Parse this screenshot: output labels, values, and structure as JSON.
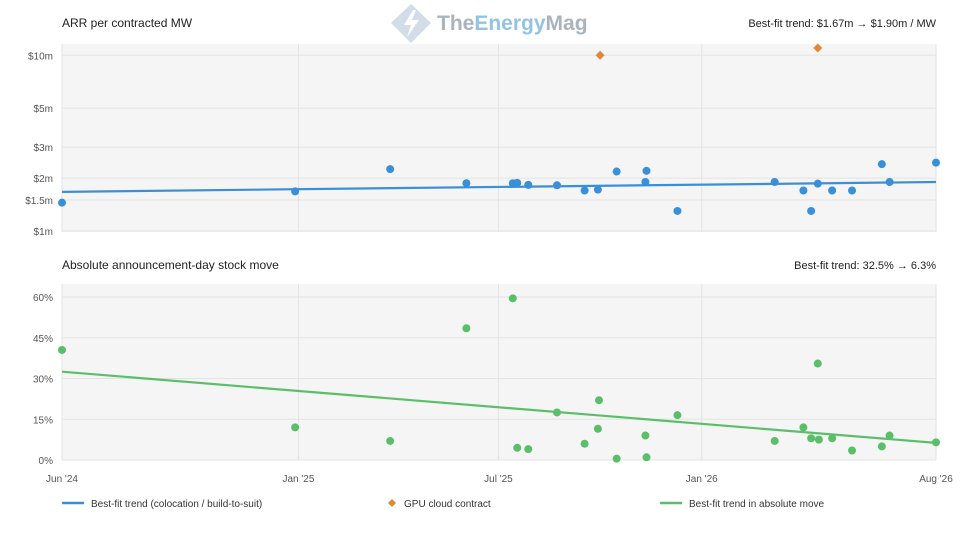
{
  "watermark": {
    "text_part1": "The",
    "text_part2": "Energy",
    "text_part3": "Mag"
  },
  "colors": {
    "blue": "#3a8fd9",
    "green": "#5bbf6a",
    "orange": "#e0883a",
    "panel": "#f5f5f5",
    "grid": "#e3e3e3"
  },
  "chart_data": [
    {
      "type": "scatter",
      "title": "ARR per contracted MW",
      "trend_text": "Best-fit trend: $1.67m → $1.90m / MW",
      "yscale": "log",
      "ylim": [
        1,
        11
      ],
      "yticks": [
        {
          "value": 10,
          "label": "$10m"
        },
        {
          "value": 5,
          "label": "$5m"
        },
        {
          "value": 3,
          "label": "$3m"
        },
        {
          "value": 2,
          "label": "$2m"
        },
        {
          "value": 1.5,
          "label": "$1.5m"
        },
        {
          "value": 1,
          "label": "$1m"
        }
      ],
      "xlim": [
        "2024-06-01",
        "2026-08-01"
      ],
      "grid": true,
      "series": [
        {
          "name": "Best-fit trend (colocation / build-to-suit)",
          "kind": "line",
          "points": [
            [
              "2024-06-01",
              1.67
            ],
            [
              "2026-08-01",
              1.9
            ]
          ]
        },
        {
          "kind": "points",
          "marker": "circle",
          "color": "blue",
          "points": [
            [
              "2024-06-01",
              1.45
            ],
            [
              "2024-12-29",
              1.68
            ],
            [
              "2025-03-25",
              2.25
            ],
            [
              "2025-06-02",
              1.87
            ],
            [
              "2025-07-14",
              1.87
            ],
            [
              "2025-07-18",
              1.88
            ],
            [
              "2025-07-28",
              1.83
            ],
            [
              "2025-08-23",
              1.82
            ],
            [
              "2025-09-17",
              1.7
            ],
            [
              "2025-09-29",
              1.72
            ],
            [
              "2025-10-16",
              2.18
            ],
            [
              "2025-11-11",
              1.9
            ],
            [
              "2025-11-12",
              2.2
            ],
            [
              "2025-12-10",
              1.3
            ],
            [
              "2026-03-08",
              1.9
            ],
            [
              "2026-04-03",
              1.7
            ],
            [
              "2026-04-10",
              1.3
            ],
            [
              "2026-04-16",
              1.86
            ],
            [
              "2026-04-29",
              1.7
            ],
            [
              "2026-05-17",
              1.7
            ],
            [
              "2026-06-13",
              2.4
            ],
            [
              "2026-06-20",
              1.9
            ],
            [
              "2026-08-01",
              2.45
            ]
          ]
        },
        {
          "name": "GPU cloud contract",
          "kind": "points",
          "marker": "diamond",
          "color": "orange",
          "points": [
            [
              "2025-10-01",
              10.0
            ],
            [
              "2026-04-16",
              11.0
            ]
          ]
        }
      ]
    },
    {
      "type": "scatter",
      "title": "Absolute announcement-day stock move",
      "trend_text": "Best-fit trend: 32.5% → 6.3%",
      "ylim": [
        0,
        60
      ],
      "yticks": [
        {
          "value": 60,
          "label": "60%"
        },
        {
          "value": 45,
          "label": "45%"
        },
        {
          "value": 30,
          "label": "30%"
        },
        {
          "value": 15,
          "label": "15%"
        },
        {
          "value": 0,
          "label": "0%"
        }
      ],
      "xticks": [
        {
          "date": "2024-06-01",
          "label": "Jun '24"
        },
        {
          "date": "2025-01-01",
          "label": "Jan '25"
        },
        {
          "date": "2025-07-01",
          "label": "Jul '25"
        },
        {
          "date": "2026-01-01",
          "label": "Jan '26"
        },
        {
          "date": "2026-08-01",
          "label": "Aug '26"
        }
      ],
      "xlim": [
        "2024-06-01",
        "2026-08-01"
      ],
      "grid": true,
      "series": [
        {
          "name": "Best-fit trend in absolute move",
          "kind": "line",
          "points": [
            [
              "2024-06-01",
              32.5
            ],
            [
              "2026-08-01",
              6.3
            ]
          ]
        },
        {
          "kind": "points",
          "marker": "circle",
          "color": "green",
          "points": [
            [
              "2024-06-01",
              40.5
            ],
            [
              "2024-12-29",
              12.0
            ],
            [
              "2025-03-25",
              7.0
            ],
            [
              "2025-06-02",
              48.5
            ],
            [
              "2025-07-14",
              59.5
            ],
            [
              "2025-07-18",
              4.5
            ],
            [
              "2025-07-28",
              4.0
            ],
            [
              "2025-08-23",
              17.5
            ],
            [
              "2025-09-17",
              6.0
            ],
            [
              "2025-09-29",
              11.5
            ],
            [
              "2025-09-30",
              22.0
            ],
            [
              "2025-10-16",
              0.5
            ],
            [
              "2025-11-11",
              9.0
            ],
            [
              "2025-11-12",
              1.0
            ],
            [
              "2025-12-10",
              16.5
            ],
            [
              "2026-03-08",
              7.0
            ],
            [
              "2026-04-03",
              12.0
            ],
            [
              "2026-04-10",
              8.0
            ],
            [
              "2026-04-16",
              35.5
            ],
            [
              "2026-04-17",
              7.5
            ],
            [
              "2026-04-29",
              8.0
            ],
            [
              "2026-05-17",
              3.5
            ],
            [
              "2026-06-13",
              5.0
            ],
            [
              "2026-06-20",
              9.0
            ],
            [
              "2026-08-01",
              6.5
            ]
          ]
        }
      ]
    }
  ],
  "legend": [
    {
      "label": "Best-fit trend (colocation / build-to-suit)",
      "symbol": "line",
      "color": "blue"
    },
    {
      "label": "GPU cloud contract",
      "symbol": "diamond",
      "color": "orange"
    },
    {
      "label": "Best-fit trend in absolute move",
      "symbol": "line",
      "color": "green"
    }
  ]
}
